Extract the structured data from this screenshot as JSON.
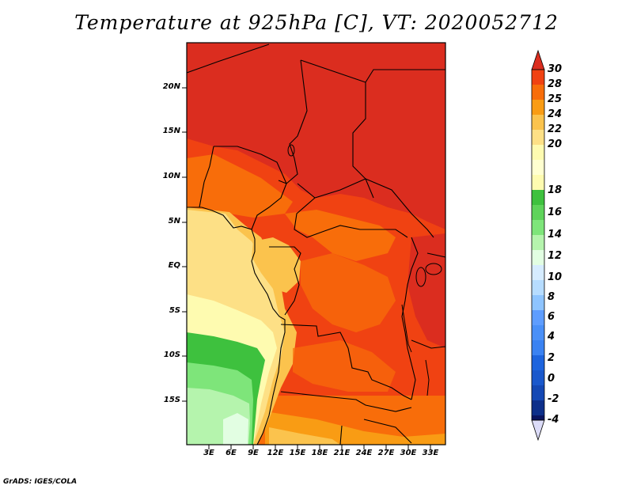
{
  "title": "Temperature at 925hPa [C], VT: 2020052712",
  "footer": "GrADS: IGES/COLA",
  "map": {
    "lat_labels": [
      "20N",
      "15N",
      "10N",
      "5N",
      "EQ",
      "5S",
      "10S",
      "15S"
    ],
    "lon_labels": [
      "3E",
      "6E",
      "9E",
      "12E",
      "15E",
      "18E",
      "21E",
      "24E",
      "27E",
      "30E",
      "33E"
    ]
  },
  "colorbar": {
    "labels": [
      "30",
      "28",
      "25",
      "24",
      "22",
      "20",
      "18",
      "16",
      "14",
      "12",
      "10",
      "8",
      "6",
      "4",
      "2",
      "0",
      "-2",
      "-4"
    ],
    "colors": {
      "above_30": "#db2d1f",
      "28_30": "#f04212",
      "25_28": "#f86d0a",
      "24_25": "#f99c14",
      "22_24": "#fbc34d",
      "20_22": "#fde086",
      "18_20": "#fefbb0",
      "16_18": "#3ec13e",
      "14_16": "#7ee57a",
      "12_14": "#b5f4ad",
      "10_12": "#e2fee2",
      "8_10": "#b6dcff",
      "6_8": "#8ec4ff",
      "4_6": "#5e9dff",
      "2_4": "#3a82f2",
      "0_2": "#1d64de",
      "m2_0": "#1448b4",
      "m4_m2": "#0d2f8a",
      "below_m4": "#0a1460",
      "lower_arrow": "#dcdcf8"
    }
  }
}
